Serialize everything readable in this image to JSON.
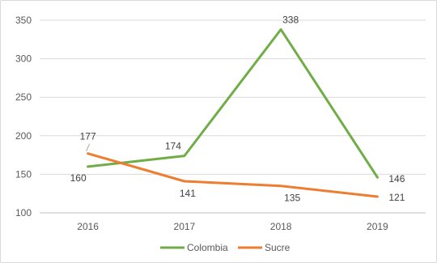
{
  "chart_data": {
    "type": "line",
    "title": "",
    "xlabel": "",
    "ylabel": "",
    "categories": [
      "2016",
      "2017",
      "2018",
      "2019"
    ],
    "ylim": [
      100,
      350
    ],
    "yticks": [
      100,
      150,
      200,
      250,
      300,
      350
    ],
    "grid": true,
    "legend_position": "bottom",
    "series": [
      {
        "name": "Colombia",
        "color": "#70ad47",
        "values": [
          160,
          174,
          338,
          146
        ],
        "labels": [
          "160",
          "174",
          "338",
          "146"
        ]
      },
      {
        "name": "Sucre",
        "color": "#ed7d31",
        "values": [
          177,
          141,
          135,
          121
        ],
        "labels": [
          "177",
          "141",
          "135",
          "121"
        ]
      }
    ]
  }
}
